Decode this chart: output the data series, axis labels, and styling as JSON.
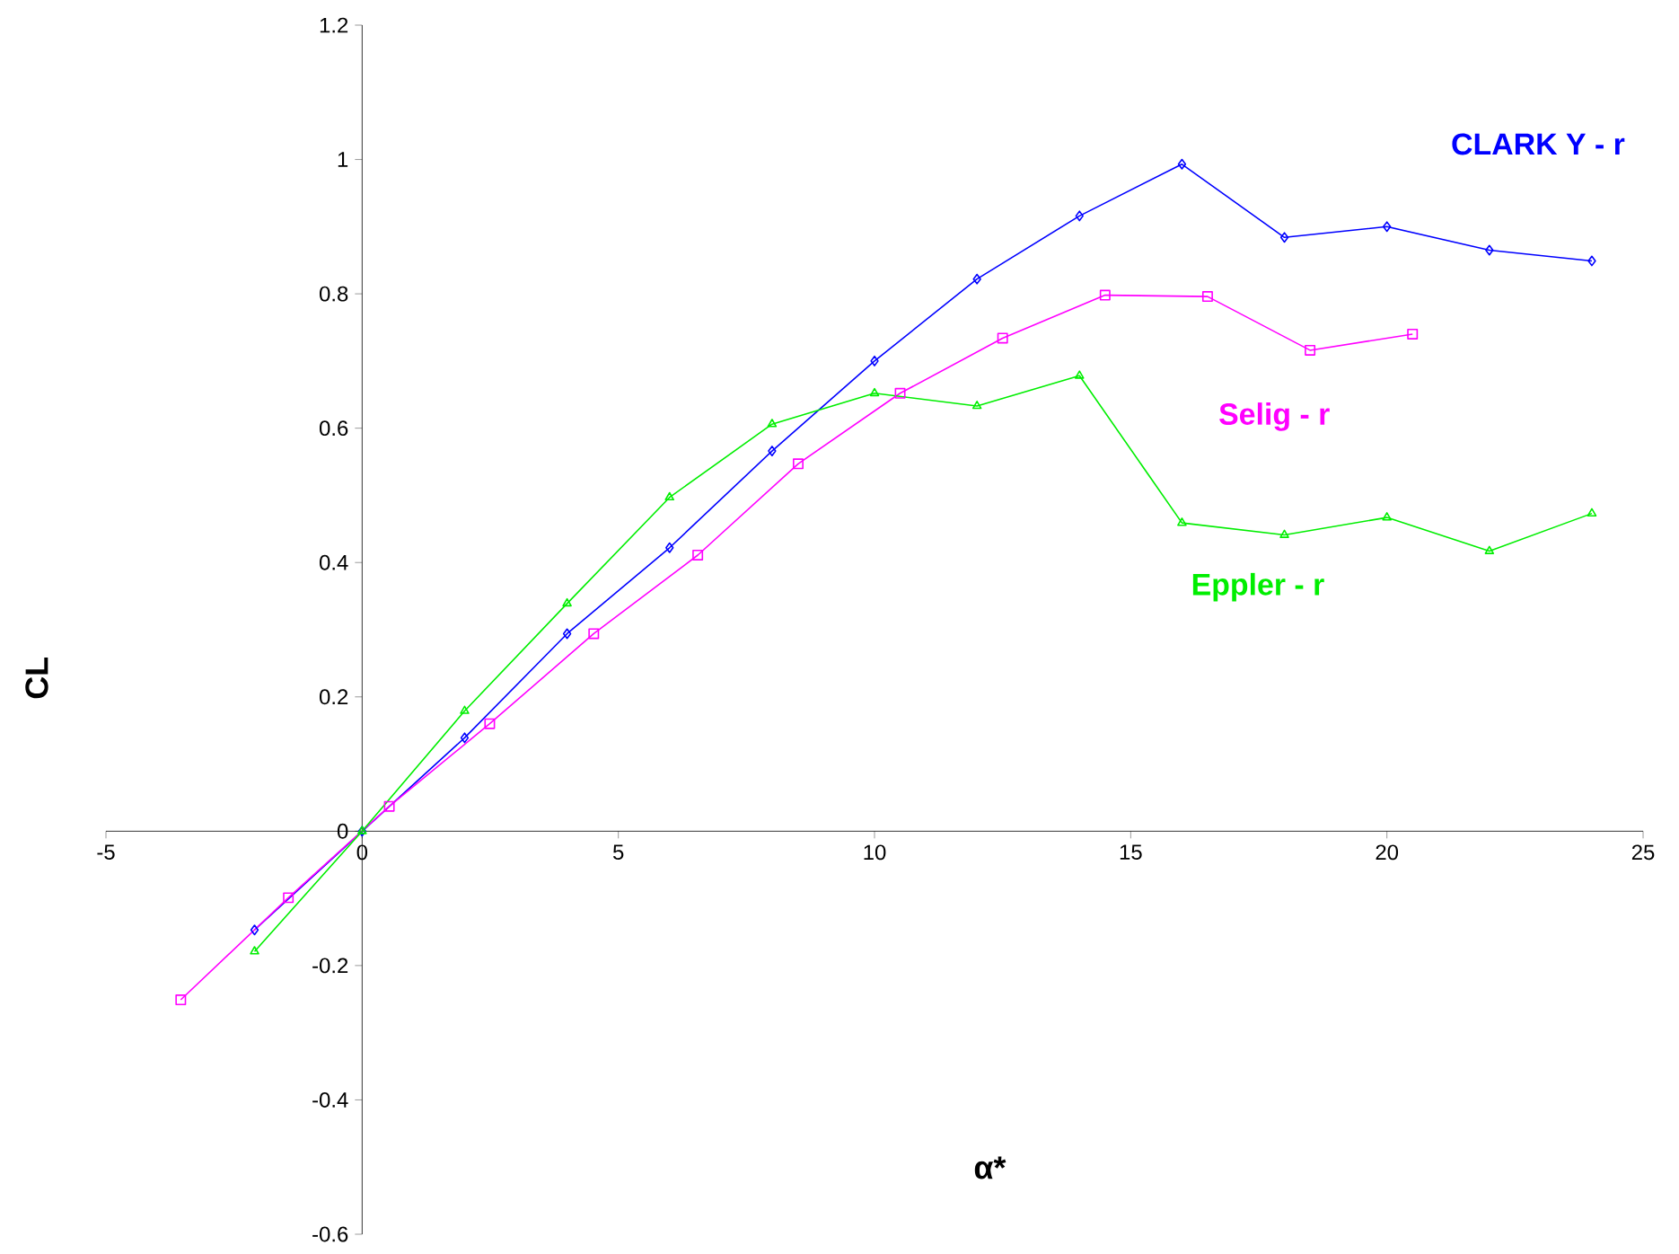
{
  "chart_data": {
    "type": "line",
    "xlabel": "α*",
    "ylabel": "CL",
    "xlim": [
      -5,
      25
    ],
    "ylim": [
      -0.6,
      1.2
    ],
    "xticks": [
      -5,
      0,
      5,
      10,
      15,
      20,
      25
    ],
    "yticks": [
      -0.6,
      -0.4,
      -0.2,
      0,
      0.2,
      0.4,
      0.6,
      0.8,
      1,
      1.2
    ],
    "grid": false,
    "series": [
      {
        "name": "CLARK Y - r",
        "color": "#0000ff",
        "marker": "diamond",
        "x": [
          -2.1,
          0,
          2,
          4,
          6,
          8,
          10,
          12,
          14,
          16,
          18,
          20,
          22,
          24
        ],
        "values": [
          -0.147,
          0,
          0.139,
          0.294,
          0.422,
          0.566,
          0.7,
          0.822,
          0.916,
          0.993,
          0.884,
          0.9,
          0.865,
          0.849
        ]
      },
      {
        "name": "Selig - r",
        "color": "#ff00ff",
        "marker": "square",
        "x": [
          -3.54,
          -1.44,
          0.53,
          2.49,
          4.52,
          6.55,
          8.51,
          10.5,
          12.5,
          14.5,
          16.5,
          18.5,
          20.5
        ],
        "values": [
          -0.251,
          -0.099,
          0.037,
          0.16,
          0.294,
          0.411,
          0.547,
          0.652,
          0.734,
          0.798,
          0.796,
          0.716,
          0.74
        ]
      },
      {
        "name": "Eppler - r",
        "color": "#00ee00",
        "marker": "triangle",
        "x": [
          -2.1,
          0,
          2,
          4,
          6,
          8,
          10,
          12,
          14,
          16,
          18,
          20,
          22,
          24
        ],
        "values": [
          -0.179,
          0,
          0.179,
          0.339,
          0.497,
          0.606,
          0.652,
          0.633,
          0.678,
          0.459,
          0.441,
          0.467,
          0.417,
          0.473
        ]
      }
    ]
  }
}
